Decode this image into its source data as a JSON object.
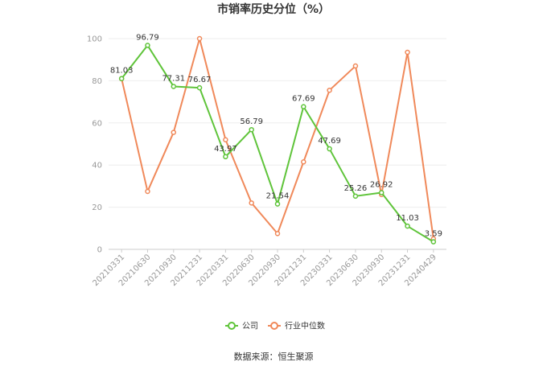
{
  "chart_data": {
    "type": "line",
    "title": "市销率历史分位（%）",
    "categories": [
      "20210331",
      "20210630",
      "20210930",
      "20211231",
      "20220331",
      "20220630",
      "20220930",
      "20221231",
      "20230331",
      "20230630",
      "20230930",
      "20231231",
      "20240429"
    ],
    "ylim": [
      0,
      100
    ],
    "yticks": [
      0,
      20,
      40,
      60,
      80,
      100
    ],
    "grid": true,
    "legend": "bottom-center",
    "series": [
      {
        "name": "公司",
        "color": "#5fc43a",
        "values": [
          81.03,
          96.79,
          77.31,
          76.67,
          43.97,
          56.79,
          21.54,
          67.69,
          47.69,
          25.26,
          26.92,
          11.03,
          3.59
        ],
        "labels": [
          "81.03",
          "96.79",
          "77.31",
          "76.67",
          "43.97",
          "56.79",
          "21.54",
          "67.69",
          "47.69",
          "25.26",
          "26.92",
          "11.03",
          "3.59"
        ]
      },
      {
        "name": "行业中位数",
        "color": "#f0895a",
        "values": [
          81,
          27.5,
          55.5,
          100,
          52,
          22,
          7.5,
          41.5,
          75.5,
          87,
          26,
          93.5,
          5
        ]
      }
    ]
  },
  "footer": {
    "source": "数据来源：恒生聚源"
  }
}
